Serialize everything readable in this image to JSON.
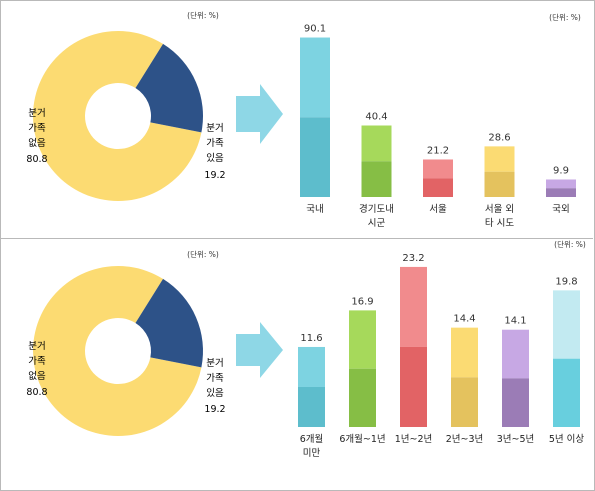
{
  "colors": {
    "donut_main": "#FCDB72",
    "donut_minor": "#2D5288",
    "arrow": "#8ED7E6"
  },
  "panels": [
    {
      "unit_label": "(단위: %)",
      "chart_unit_label": "(단위: %)",
      "donut": {
        "label_main": [
          "분거",
          "가족",
          "없음",
          "80.8"
        ],
        "label_minor": [
          "분거",
          "가족",
          "있음",
          "19.2"
        ]
      }
    },
    {
      "unit_label": "(단위: %)",
      "chart_unit_label": "(단위: %)",
      "donut": {
        "label_main": [
          "분거",
          "가족",
          "없음",
          "80.8"
        ],
        "label_minor": [
          "분거",
          "가족",
          "있음",
          "19.2"
        ]
      }
    }
  ],
  "chart_data": [
    {
      "type": "pie",
      "categories": [
        "분거가족 없음",
        "분거가족 있음"
      ],
      "values": [
        80.8,
        19.2
      ]
    },
    {
      "type": "bar",
      "categories": [
        [
          "국내"
        ],
        [
          "경기도내",
          "시군"
        ],
        [
          "서울"
        ],
        [
          "서울 외",
          "타 시도"
        ],
        [
          "국외"
        ]
      ],
      "values": [
        90.1,
        40.4,
        21.2,
        28.6,
        9.9
      ],
      "value_labels": [
        "90.1",
        "40.4",
        "21.2",
        "28.6",
        "9.9"
      ],
      "colors": [
        [
          "#7DD3E1",
          "#5DBDCC"
        ],
        [
          "#A6D95B",
          "#86BE45"
        ],
        [
          "#F18B8D",
          "#E26365"
        ],
        [
          "#FBDB73",
          "#E4C25E"
        ],
        [
          "#C7A8E4",
          "#9B7CB6"
        ]
      ],
      "ylim": [
        0,
        100
      ]
    },
    {
      "type": "pie",
      "categories": [
        "분거가족 없음",
        "분거가족 있음"
      ],
      "values": [
        80.8,
        19.2
      ]
    },
    {
      "type": "bar",
      "categories": [
        [
          "6개월",
          "미만"
        ],
        [
          "6개월~1년"
        ],
        [
          "1년~2년"
        ],
        [
          "2년~3년"
        ],
        [
          "3년~5년"
        ],
        [
          "5년 이상"
        ]
      ],
      "values": [
        11.6,
        16.9,
        23.2,
        14.4,
        14.1,
        19.8
      ],
      "value_labels": [
        "11.6",
        "16.9",
        "23.2",
        "14.4",
        "14.1",
        "19.8"
      ],
      "colors": [
        [
          "#7DD3E1",
          "#5DBDCC"
        ],
        [
          "#A6D95B",
          "#86BE45"
        ],
        [
          "#F18B8D",
          "#E26365"
        ],
        [
          "#FBDB73",
          "#E4C25E"
        ],
        [
          "#C7A8E4",
          "#9B7CB6"
        ],
        [
          "#C2EAF1",
          "#68CFDE"
        ]
      ],
      "ylim": [
        0,
        25
      ]
    }
  ]
}
